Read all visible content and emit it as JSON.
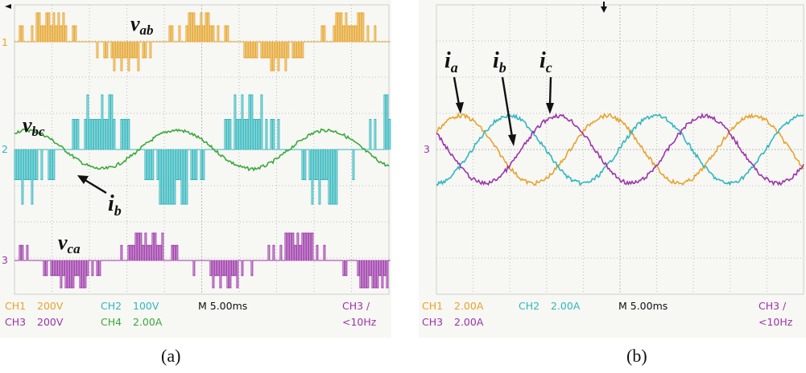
{
  "captions": {
    "a": "(a)",
    "b": "(b)"
  },
  "colors": {
    "ch1": "#e6a42a",
    "ch2": "#2fb7be",
    "ch3": "#9b34a8",
    "ch4": "#3aa83a",
    "grid": "#b9b9b9",
    "bg": "#f7f7f4",
    "frame": "#cfcfcf"
  },
  "panel_a": {
    "readout": {
      "ch1": "CH1",
      "ch1_scale": "200V",
      "ch2": "CH2",
      "ch2_scale": "100V",
      "timebase": "M 5.00ms",
      "trig": "CH3 ∕",
      "ch3": "CH3",
      "ch3_scale": "200V",
      "ch4": "CH4",
      "ch4_scale": "2.00A",
      "freq": "<10Hz"
    },
    "labels": {
      "vab_main": "v",
      "vab_sub": "ab",
      "vbc_main": "v",
      "vbc_sub": "bc",
      "vca_main": "v",
      "vca_sub": "ca",
      "ib_main": "i",
      "ib_sub": "b"
    },
    "markers": {
      "ch1": "1",
      "ch2": "2",
      "ch3": "3"
    }
  },
  "panel_b": {
    "readout": {
      "ch1": "CH1",
      "ch1_scale": "2.00A",
      "ch2": "CH2",
      "ch2_scale": "2.00A",
      "timebase": "M 5.00ms",
      "trig": "CH3 ∕",
      "ch3": "CH3",
      "ch3_scale": "2.00A",
      "freq": "<10Hz"
    },
    "labels": {
      "ia_main": "i",
      "ia_sub": "a",
      "ib_main": "i",
      "ib_sub": "b",
      "ic_main": "i",
      "ic_sub": "c"
    },
    "markers": {
      "ch3": "3"
    }
  },
  "chart_data": [
    {
      "type": "line",
      "title": "",
      "xlabel": "",
      "ylabel": "",
      "x_unit": "ms",
      "time_per_div_ms": 5,
      "divisions": 10,
      "grid": true,
      "series": [
        {
          "name": "v_ab",
          "channel": "CH1",
          "scale_per_div": "200V",
          "waveform": "PWM multilevel line voltage",
          "period_ms": 20,
          "phase_deg": 0
        },
        {
          "name": "v_bc",
          "channel": "CH2",
          "scale_per_div": "100V",
          "waveform": "PWM multilevel line voltage",
          "period_ms": 20,
          "phase_deg": -120
        },
        {
          "name": "i_b",
          "channel": "CH4",
          "scale_per_div": "2.00A",
          "waveform": "sinusoid",
          "period_ms": 20,
          "amplitude_div": 0.55,
          "phase_deg": -120
        },
        {
          "name": "v_ca",
          "channel": "CH3",
          "scale_per_div": "200V",
          "waveform": "PWM multilevel line voltage",
          "period_ms": 20,
          "phase_deg": 120
        }
      ]
    },
    {
      "type": "line",
      "title": "",
      "xlabel": "",
      "ylabel": "",
      "x_unit": "ms",
      "time_per_div_ms": 5,
      "divisions": 10,
      "grid": true,
      "series": [
        {
          "name": "i_a",
          "channel": "CH1",
          "scale_per_div": "2.00A",
          "waveform": "sinusoid",
          "period_ms": 20,
          "amplitude_div": 0.95,
          "phase_deg": 0
        },
        {
          "name": "i_b",
          "channel": "CH2",
          "scale_per_div": "2.00A",
          "waveform": "sinusoid",
          "period_ms": 20,
          "amplitude_div": 0.95,
          "phase_deg": -120
        },
        {
          "name": "i_c",
          "channel": "CH3",
          "scale_per_div": "2.00A",
          "waveform": "sinusoid",
          "period_ms": 20,
          "amplitude_div": 0.95,
          "phase_deg": 120
        }
      ]
    }
  ]
}
